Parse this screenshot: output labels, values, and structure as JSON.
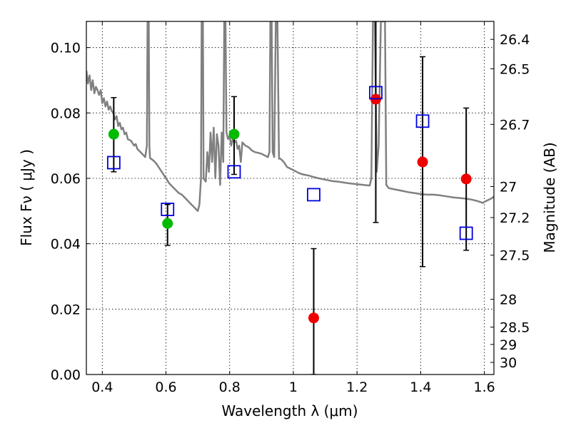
{
  "chart_data": {
    "type": "scatter",
    "title": "",
    "xlabel": "Wavelength  λ (μm)",
    "ylabel_left": "Flux  Fν  ( μJy )",
    "ylabel_right": "Magnitude (AB)",
    "xlim": [
      0.35,
      1.63
    ],
    "ylim": [
      0.0,
      0.108
    ],
    "grid": true,
    "x_ticks": [
      {
        "value": 0.4,
        "label": "0.4"
      },
      {
        "value": 0.6,
        "label": "0.6"
      },
      {
        "value": 0.8,
        "label": "0.8"
      },
      {
        "value": 1.0,
        "label": "1"
      },
      {
        "value": 1.2,
        "label": "1.2"
      },
      {
        "value": 1.4,
        "label": "1.4"
      },
      {
        "value": 1.6,
        "label": "1.6"
      }
    ],
    "y_ticks": [
      {
        "value": 0.0,
        "label": "0.00"
      },
      {
        "value": 0.02,
        "label": "0.02"
      },
      {
        "value": 0.04,
        "label": "0.04"
      },
      {
        "value": 0.06,
        "label": "0.06"
      },
      {
        "value": 0.08,
        "label": "0.08"
      },
      {
        "value": 0.1,
        "label": "0.10"
      }
    ],
    "right_ticks": [
      {
        "flux": 0.1025,
        "label": "26.4"
      },
      {
        "flux": 0.0935,
        "label": "26.5"
      },
      {
        "flux": 0.0765,
        "label": "26.7"
      },
      {
        "flux": 0.0575,
        "label": "27"
      },
      {
        "flux": 0.048,
        "label": "27.2"
      },
      {
        "flux": 0.0365,
        "label": "27.5"
      },
      {
        "flux": 0.023,
        "label": "28"
      },
      {
        "flux": 0.0145,
        "label": "28.5"
      },
      {
        "flux": 0.0092,
        "label": "29"
      },
      {
        "flux": 0.0037,
        "label": "30"
      }
    ],
    "series": [
      {
        "kind": "line",
        "color": "#808080",
        "points": [
          [
            0.35,
            0.093
          ],
          [
            0.355,
            0.089
          ],
          [
            0.36,
            0.0915
          ],
          [
            0.365,
            0.087
          ],
          [
            0.37,
            0.09
          ],
          [
            0.375,
            0.086
          ],
          [
            0.38,
            0.088
          ],
          [
            0.385,
            0.087
          ],
          [
            0.39,
            0.0855
          ],
          [
            0.395,
            0.087
          ],
          [
            0.4,
            0.083
          ],
          [
            0.405,
            0.0845
          ],
          [
            0.41,
            0.082
          ],
          [
            0.415,
            0.0835
          ],
          [
            0.42,
            0.081
          ],
          [
            0.425,
            0.082
          ],
          [
            0.43,
            0.0805
          ],
          [
            0.435,
            0.08
          ],
          [
            0.44,
            0.078
          ],
          [
            0.445,
            0.079
          ],
          [
            0.45,
            0.076
          ],
          [
            0.455,
            0.077
          ],
          [
            0.46,
            0.075
          ],
          [
            0.465,
            0.0755
          ],
          [
            0.47,
            0.0735
          ],
          [
            0.475,
            0.074
          ],
          [
            0.48,
            0.072
          ],
          [
            0.49,
            0.0715
          ],
          [
            0.5,
            0.07
          ],
          [
            0.505,
            0.0705
          ],
          [
            0.51,
            0.069
          ],
          [
            0.52,
            0.068
          ],
          [
            0.53,
            0.067
          ],
          [
            0.535,
            0.0665
          ],
          [
            0.54,
            0.07
          ],
          [
            0.542,
            0.108
          ],
          [
            0.546,
            0.108
          ],
          [
            0.548,
            0.07
          ],
          [
            0.55,
            0.0662
          ],
          [
            0.56,
            0.0655
          ],
          [
            0.57,
            0.0645
          ],
          [
            0.58,
            0.063
          ],
          [
            0.59,
            0.0615
          ],
          [
            0.6,
            0.06
          ],
          [
            0.61,
            0.0585
          ],
          [
            0.62,
            0.0575
          ],
          [
            0.63,
            0.0565
          ],
          [
            0.64,
            0.0555
          ],
          [
            0.65,
            0.055
          ],
          [
            0.66,
            0.054
          ],
          [
            0.67,
            0.053
          ],
          [
            0.68,
            0.052
          ],
          [
            0.69,
            0.051
          ],
          [
            0.7,
            0.05
          ],
          [
            0.705,
            0.052
          ],
          [
            0.71,
            0.06
          ],
          [
            0.712,
            0.108
          ],
          [
            0.716,
            0.108
          ],
          [
            0.718,
            0.06
          ],
          [
            0.725,
            0.059
          ],
          [
            0.73,
            0.068
          ],
          [
            0.735,
            0.062
          ],
          [
            0.74,
            0.074
          ],
          [
            0.745,
            0.065
          ],
          [
            0.75,
            0.0755
          ],
          [
            0.755,
            0.06
          ],
          [
            0.76,
            0.0735
          ],
          [
            0.765,
            0.07
          ],
          [
            0.77,
            0.058
          ],
          [
            0.775,
            0.074
          ],
          [
            0.78,
            0.065
          ],
          [
            0.783,
            0.108
          ],
          [
            0.787,
            0.108
          ],
          [
            0.79,
            0.074
          ],
          [
            0.795,
            0.072
          ],
          [
            0.8,
            0.073
          ],
          [
            0.805,
            0.07
          ],
          [
            0.81,
            0.072
          ],
          [
            0.815,
            0.071
          ],
          [
            0.82,
            0.0715
          ],
          [
            0.825,
            0.069
          ],
          [
            0.83,
            0.07
          ],
          [
            0.835,
            0.065
          ],
          [
            0.84,
            0.071
          ],
          [
            0.85,
            0.07
          ],
          [
            0.86,
            0.0695
          ],
          [
            0.87,
            0.0685
          ],
          [
            0.88,
            0.068
          ],
          [
            0.89,
            0.0678
          ],
          [
            0.9,
            0.0675
          ],
          [
            0.91,
            0.067
          ],
          [
            0.92,
            0.0665
          ],
          [
            0.925,
            0.068
          ],
          [
            0.928,
            0.108
          ],
          [
            0.932,
            0.108
          ],
          [
            0.935,
            0.068
          ],
          [
            0.94,
            0.0665
          ],
          [
            0.945,
            0.108
          ],
          [
            0.95,
            0.108
          ],
          [
            0.955,
            0.066
          ],
          [
            0.96,
            0.066
          ],
          [
            0.97,
            0.065
          ],
          [
            0.98,
            0.0635
          ],
          [
            0.99,
            0.063
          ],
          [
            1.0,
            0.0625
          ],
          [
            1.01,
            0.062
          ],
          [
            1.02,
            0.0615
          ],
          [
            1.03,
            0.0612
          ],
          [
            1.04,
            0.061
          ],
          [
            1.05,
            0.0608
          ],
          [
            1.06,
            0.0605
          ],
          [
            1.08,
            0.06
          ],
          [
            1.1,
            0.0596
          ],
          [
            1.12,
            0.0592
          ],
          [
            1.14,
            0.059
          ],
          [
            1.16,
            0.0587
          ],
          [
            1.18,
            0.0584
          ],
          [
            1.2,
            0.0582
          ],
          [
            1.22,
            0.058
          ],
          [
            1.24,
            0.0578
          ],
          [
            1.245,
            0.06
          ],
          [
            1.25,
            0.108
          ],
          [
            1.256,
            0.108
          ],
          [
            1.262,
            0.062
          ],
          [
            1.268,
            0.07
          ],
          [
            1.275,
            0.108
          ],
          [
            1.288,
            0.108
          ],
          [
            1.292,
            0.058
          ],
          [
            1.3,
            0.057
          ],
          [
            1.32,
            0.0566
          ],
          [
            1.34,
            0.0562
          ],
          [
            1.36,
            0.0558
          ],
          [
            1.38,
            0.0555
          ],
          [
            1.4,
            0.0552
          ],
          [
            1.42,
            0.055
          ],
          [
            1.44,
            0.055
          ],
          [
            1.46,
            0.0548
          ],
          [
            1.48,
            0.0545
          ],
          [
            1.5,
            0.0542
          ],
          [
            1.52,
            0.054
          ],
          [
            1.54,
            0.0538
          ],
          [
            1.56,
            0.0535
          ],
          [
            1.58,
            0.053
          ],
          [
            1.595,
            0.0525
          ],
          [
            1.6,
            0.0528
          ],
          [
            1.615,
            0.0535
          ],
          [
            1.625,
            0.054
          ],
          [
            1.63,
            0.0545
          ]
        ]
      },
      {
        "kind": "marker",
        "shape": "circle",
        "color": "#00bb00",
        "points": [
          [
            0.436,
            0.0735
          ],
          [
            0.605,
            0.0462
          ],
          [
            0.814,
            0.0735
          ]
        ]
      },
      {
        "kind": "marker",
        "shape": "circle",
        "color": "#ee0000",
        "points": [
          [
            1.064,
            0.0173
          ],
          [
            1.259,
            0.0842
          ],
          [
            1.406,
            0.065
          ],
          [
            1.543,
            0.0598
          ]
        ]
      },
      {
        "kind": "marker",
        "shape": "square",
        "color": "#0000dd",
        "points": [
          [
            0.436,
            0.0648
          ],
          [
            0.605,
            0.0505
          ],
          [
            0.814,
            0.062
          ],
          [
            1.064,
            0.055
          ],
          [
            1.259,
            0.0862
          ],
          [
            1.406,
            0.0775
          ],
          [
            1.543,
            0.0432
          ]
        ]
      }
    ],
    "error_bars": [
      {
        "x": 0.436,
        "low": 0.062,
        "high": 0.0847
      },
      {
        "x": 0.605,
        "low": 0.0395,
        "high": 0.052
      },
      {
        "x": 0.814,
        "low": 0.0612,
        "high": 0.085
      },
      {
        "x": 1.064,
        "low": 0.0,
        "high": 0.0385
      },
      {
        "x": 1.259,
        "low": 0.0465,
        "high": 0.108
      },
      {
        "x": 1.406,
        "low": 0.033,
        "high": 0.0972
      },
      {
        "x": 1.543,
        "low": 0.038,
        "high": 0.0815
      }
    ]
  }
}
